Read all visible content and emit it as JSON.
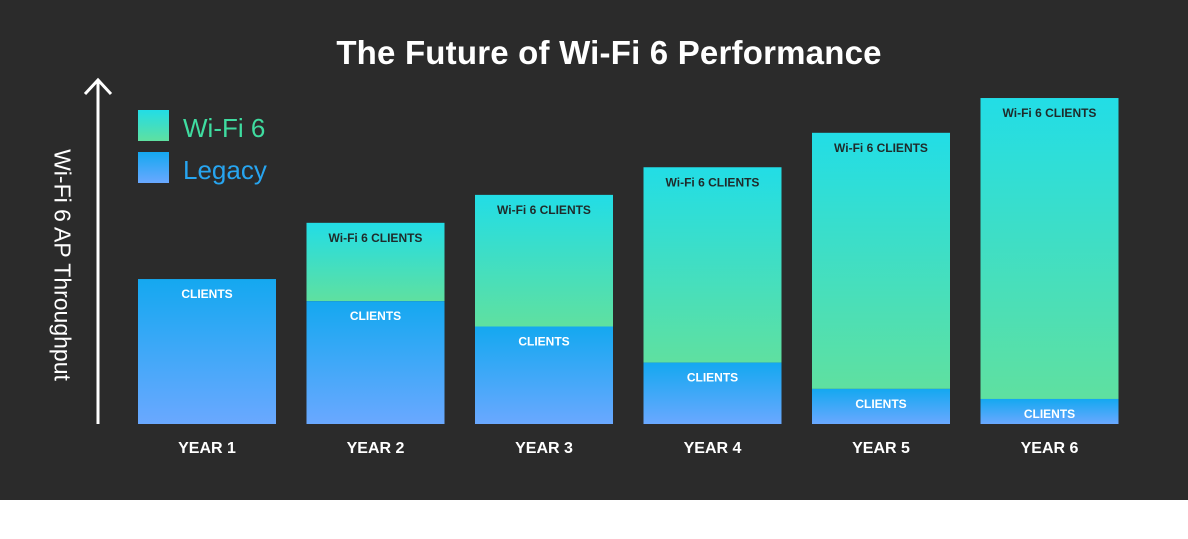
{
  "chart_data": {
    "type": "bar",
    "stacked": true,
    "title": "The Future of Wi-Fi 6 Performance",
    "ylabel": "Wi-Fi 6 AP Throughput",
    "xlabel": "",
    "categories": [
      "YEAR 1",
      "YEAR 2",
      "YEAR 3",
      "YEAR 4",
      "YEAR 5",
      "YEAR 6"
    ],
    "series": [
      {
        "name": "Legacy",
        "segment_label": "CLIENTS",
        "values": [
          44.6,
          37.8,
          30.0,
          18.9,
          10.8,
          7.7
        ],
        "color_top": "#14a8f0",
        "color_bottom": "#6aa8ff",
        "label_color": "#ffffff"
      },
      {
        "name": "Wi-Fi 6",
        "segment_label": "Wi-Fi 6 CLIENTS",
        "values": [
          0,
          24.1,
          40.5,
          60.1,
          78.8,
          92.6
        ],
        "color_top": "#22dde6",
        "color_bottom": "#5fe0a0",
        "label_color": "#1f2a2a"
      }
    ],
    "ylim": [
      0,
      100
    ],
    "y_ticks_shown": false,
    "grid": false,
    "legend": "top-left"
  }
}
